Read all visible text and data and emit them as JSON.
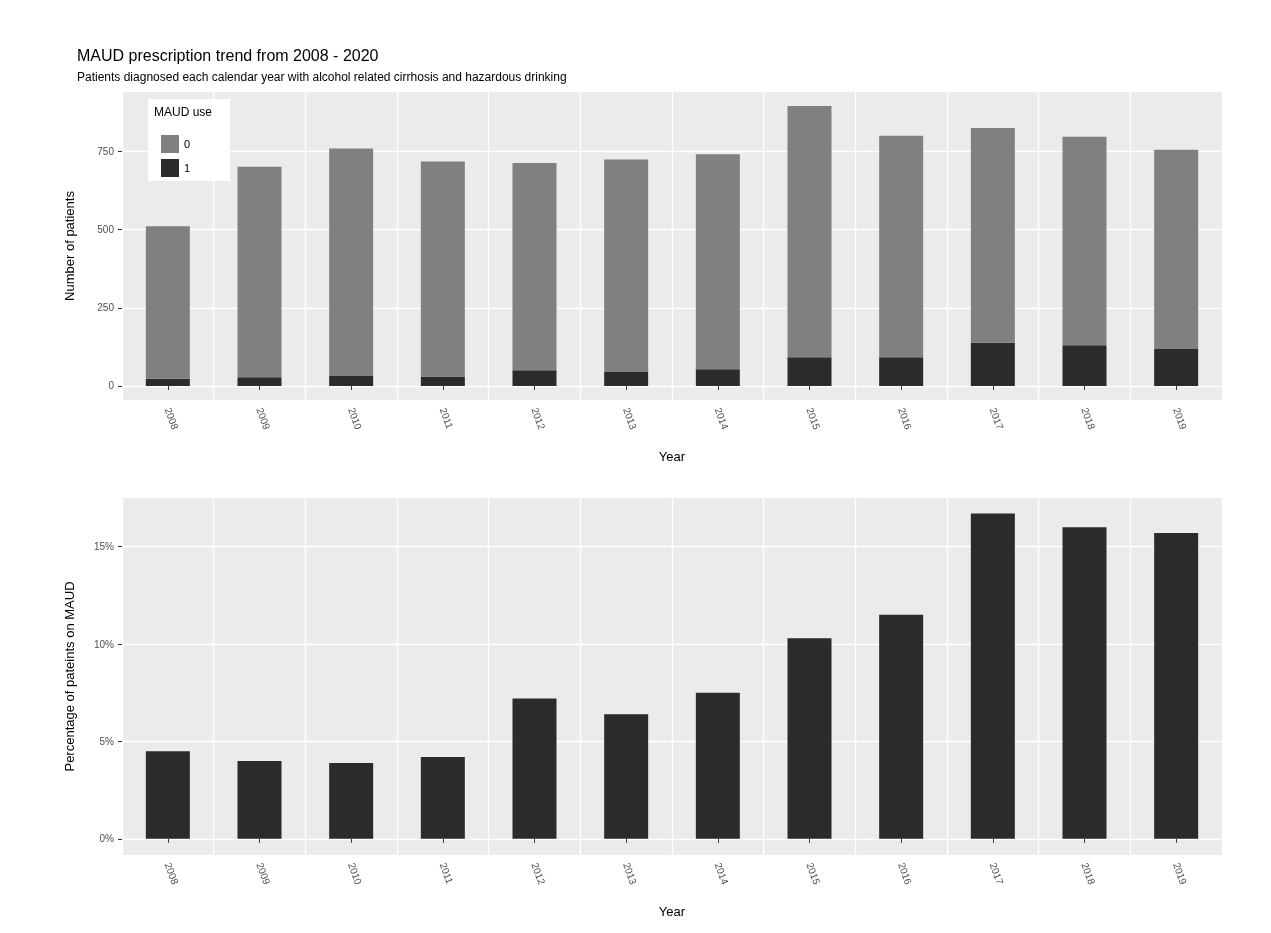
{
  "chart_data": [
    {
      "type": "bar",
      "title": "MAUD prescription trend from 2008 - 2020",
      "subtitle": "Patients diagnosed each calendar year with alcohol related cirrhosis and hazardous drinking",
      "xlabel": "Year",
      "ylabel": "Number of patients",
      "legend_title": "MAUD use",
      "legend": "top left",
      "stacked": true,
      "grid": true,
      "categories": [
        "2008",
        "2009",
        "2010",
        "2011",
        "2012",
        "2013",
        "2014",
        "2015",
        "2016",
        "2017",
        "2018",
        "2019"
      ],
      "series": [
        {
          "name": "1",
          "color": "#2b2b2b",
          "values": [
            23,
            28,
            32,
            30,
            50,
            46,
            53,
            92,
            92,
            138,
            130,
            118
          ]
        },
        {
          "name": "0",
          "color": "#808080",
          "values": [
            488,
            673,
            727,
            688,
            663,
            678,
            688,
            803,
            708,
            687,
            667,
            637
          ]
        }
      ],
      "ylim": [
        -45,
        940
      ],
      "yticks": [
        0,
        250,
        500,
        750
      ]
    },
    {
      "type": "bar",
      "xlabel": "Year",
      "ylabel": "Percentage of pateints on MAUD",
      "grid": true,
      "categories": [
        "2008",
        "2009",
        "2010",
        "2011",
        "2012",
        "2013",
        "2014",
        "2015",
        "2016",
        "2017",
        "2018",
        "2019"
      ],
      "series": [
        {
          "color": "#2b2b2b",
          "values": [
            4.5,
            4.0,
            3.9,
            4.2,
            7.2,
            6.4,
            7.5,
            10.3,
            11.5,
            16.7,
            16.0,
            15.7
          ]
        }
      ],
      "ylim": [
        -0.83,
        17.5
      ],
      "yticks": [
        {
          "value": 0,
          "label": "0%"
        },
        {
          "value": 5,
          "label": "5%"
        },
        {
          "value": 10,
          "label": "10%"
        },
        {
          "value": 15,
          "label": "15%"
        }
      ]
    }
  ]
}
